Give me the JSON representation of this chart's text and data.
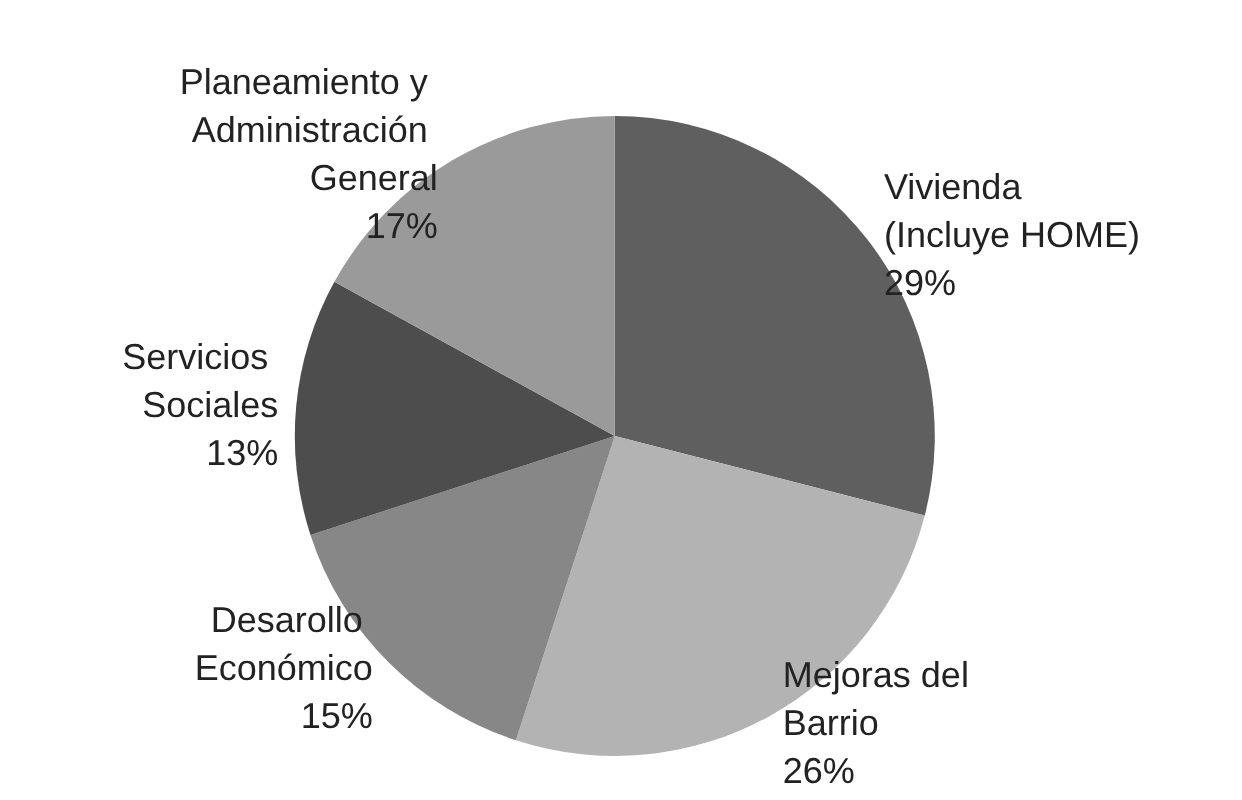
{
  "chart_data": {
    "type": "pie",
    "categories": [
      "Vivienda (Incluye HOME)",
      "Mejoras del Barrio",
      "Desarollo Económico",
      "Servicios Sociales",
      "Planeamiento y Administración General"
    ],
    "values": [
      29,
      26,
      15,
      13,
      17
    ],
    "value_labels": [
      "29%",
      "26%",
      "15%",
      "13%",
      "17%"
    ],
    "colors": [
      "#5f5f5f",
      "#b3b3b3",
      "#878787",
      "#4d4d4d",
      "#9a9a9a"
    ],
    "legend": false
  }
}
